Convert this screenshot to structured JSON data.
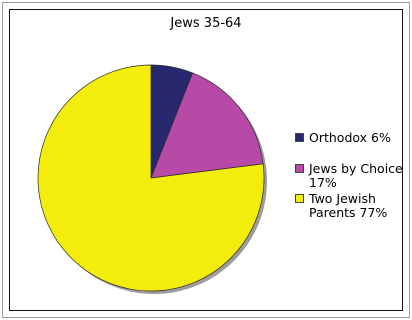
{
  "chart_data": {
    "type": "pie",
    "title": "Jews 35-64",
    "slices": [
      {
        "label": "Orthodox 6%",
        "value": 6,
        "color": "#28286e"
      },
      {
        "label": "Jews by Choice\n17%",
        "value": 17,
        "color": "#b64aa6"
      },
      {
        "label": "Two Jewish\nParents 77%",
        "value": 77,
        "color": "#f4ec0a"
      }
    ],
    "legend_position": "right"
  }
}
